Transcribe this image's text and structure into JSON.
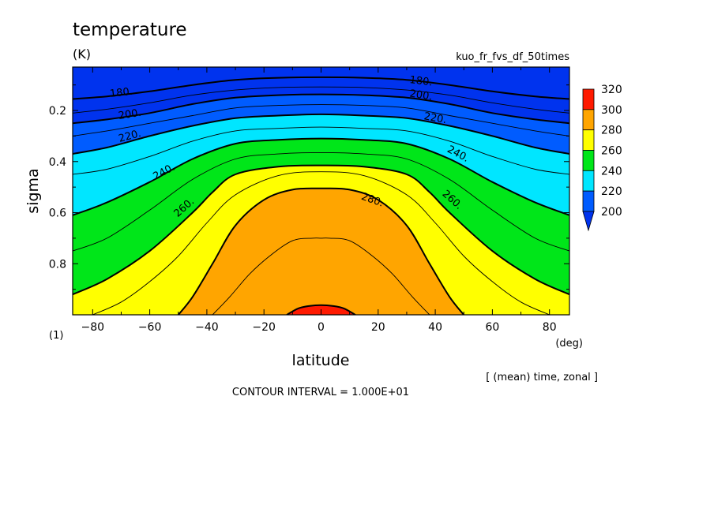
{
  "chart_data": {
    "type": "heatmap",
    "title": "temperature",
    "units": "(K)",
    "subtitle_right": "kuo_fr_fvs_df_50times",
    "xlabel": "latitude",
    "xunits": "(deg)",
    "ylabel": "sigma",
    "yunits": "(1)",
    "xlim": [
      -87,
      87
    ],
    "ylim": [
      1.0,
      0.03
    ],
    "xticks": [
      -80,
      -60,
      -40,
      -20,
      0,
      20,
      40,
      60,
      80
    ],
    "xtick_labels": [
      "−80",
      "−60",
      "−40",
      "−20",
      "0",
      "20",
      "40",
      "60",
      "80"
    ],
    "yticks": [
      0.2,
      0.4,
      0.6,
      0.8
    ],
    "ytick_labels": [
      "0.2",
      "0.4",
      "0.6",
      "0.8"
    ],
    "levels": [
      200,
      220,
      240,
      260,
      280,
      300,
      320
    ],
    "colorbar_labels": [
      "320",
      "300",
      "280",
      "260",
      "240",
      "220",
      "200"
    ],
    "colors": {
      "below_200": "#0033ee",
      "200_220": "#005cff",
      "220_240": "#00e6ff",
      "240_260": "#00e619",
      "260_280": "#ffff00",
      "280_300": "#ffa500",
      "300_320": "#ff1a00"
    },
    "contours": [
      {
        "value": 180,
        "lats": [
          -87,
          -75,
          -60,
          -45,
          -30,
          -15,
          0,
          15,
          30,
          45,
          60,
          75,
          87
        ],
        "sigma": [
          0.155,
          0.145,
          0.125,
          0.1,
          0.08,
          0.072,
          0.07,
          0.072,
          0.08,
          0.1,
          0.125,
          0.145,
          0.155
        ]
      },
      {
        "value": 190,
        "lats": [
          -87,
          -75,
          -60,
          -45,
          -30,
          -15,
          0,
          15,
          30,
          45,
          60,
          75,
          87
        ],
        "sigma": [
          0.21,
          0.195,
          0.17,
          0.14,
          0.12,
          0.11,
          0.108,
          0.11,
          0.12,
          0.14,
          0.17,
          0.195,
          0.21
        ]
      },
      {
        "value": 200,
        "lats": [
          -87,
          -75,
          -60,
          -45,
          -30,
          -15,
          0,
          15,
          30,
          45,
          60,
          75,
          87
        ],
        "sigma": [
          0.25,
          0.235,
          0.21,
          0.175,
          0.15,
          0.14,
          0.137,
          0.14,
          0.15,
          0.175,
          0.21,
          0.235,
          0.25
        ]
      },
      {
        "value": 210,
        "lats": [
          -87,
          -75,
          -60,
          -45,
          -30,
          -15,
          0,
          15,
          30,
          45,
          60,
          75,
          87
        ],
        "sigma": [
          0.3,
          0.28,
          0.25,
          0.22,
          0.19,
          0.18,
          0.177,
          0.18,
          0.19,
          0.22,
          0.25,
          0.28,
          0.3
        ]
      },
      {
        "value": 220,
        "lats": [
          -87,
          -75,
          -60,
          -45,
          -30,
          -15,
          0,
          15,
          30,
          45,
          60,
          75,
          87
        ],
        "sigma": [
          0.37,
          0.345,
          0.3,
          0.26,
          0.23,
          0.22,
          0.215,
          0.22,
          0.23,
          0.26,
          0.3,
          0.345,
          0.37
        ]
      },
      {
        "value": 230,
        "lats": [
          -87,
          -75,
          -60,
          -45,
          -30,
          -15,
          0,
          15,
          30,
          45,
          60,
          75,
          87
        ],
        "sigma": [
          0.45,
          0.43,
          0.38,
          0.32,
          0.28,
          0.27,
          0.265,
          0.27,
          0.28,
          0.32,
          0.38,
          0.43,
          0.45
        ]
      },
      {
        "value": 240,
        "lats": [
          -87,
          -75,
          -60,
          -45,
          -30,
          -15,
          0,
          15,
          30,
          45,
          60,
          75,
          87
        ],
        "sigma": [
          0.61,
          0.56,
          0.48,
          0.39,
          0.33,
          0.315,
          0.31,
          0.315,
          0.33,
          0.39,
          0.48,
          0.56,
          0.61
        ]
      },
      {
        "value": 250,
        "lats": [
          -87,
          -75,
          -60,
          -45,
          -30,
          -15,
          0,
          15,
          30,
          45,
          60,
          75,
          87
        ],
        "sigma": [
          0.75,
          0.7,
          0.59,
          0.47,
          0.39,
          0.37,
          0.365,
          0.37,
          0.39,
          0.47,
          0.59,
          0.7,
          0.75
        ]
      },
      {
        "value": 260,
        "lats": [
          -87,
          -75,
          -60,
          -45,
          -38,
          -30,
          -15,
          0,
          15,
          30,
          38,
          45,
          60,
          75,
          87
        ],
        "sigma": [
          0.92,
          0.86,
          0.75,
          0.6,
          0.52,
          0.45,
          0.42,
          0.415,
          0.42,
          0.45,
          0.52,
          0.6,
          0.75,
          0.86,
          0.92
        ]
      },
      {
        "value": 270,
        "lats": [
          -80,
          -70,
          -60,
          -50,
          -40,
          -30,
          -15,
          0,
          15,
          30,
          40,
          50,
          60,
          70,
          80
        ],
        "sigma": [
          1.0,
          0.95,
          0.87,
          0.77,
          0.64,
          0.53,
          0.455,
          0.44,
          0.455,
          0.53,
          0.64,
          0.77,
          0.87,
          0.95,
          1.0
        ]
      },
      {
        "value": 280,
        "lats": [
          -50,
          -45,
          -38,
          -30,
          -20,
          -10,
          0,
          10,
          20,
          30,
          38,
          45,
          50
        ],
        "sigma": [
          1.0,
          0.93,
          0.8,
          0.65,
          0.55,
          0.51,
          0.505,
          0.51,
          0.55,
          0.65,
          0.8,
          0.93,
          1.0
        ]
      },
      {
        "value": 290,
        "lats": [
          -38,
          -32,
          -25,
          -18,
          -10,
          -3,
          0,
          3,
          10,
          18,
          25,
          32,
          38
        ],
        "sigma": [
          1.0,
          0.93,
          0.84,
          0.77,
          0.71,
          0.7,
          0.7,
          0.7,
          0.71,
          0.77,
          0.84,
          0.93,
          1.0
        ]
      },
      {
        "value": 300,
        "lats": [
          -12,
          -8,
          -4,
          0,
          4,
          8,
          12
        ],
        "sigma": [
          1.0,
          0.975,
          0.965,
          0.962,
          0.965,
          0.975,
          1.0
        ]
      }
    ],
    "contour_labels": [
      {
        "text": "180.",
        "lat": -70,
        "sigma": 0.13
      },
      {
        "text": "180.",
        "lat": 35,
        "sigma": 0.085
      },
      {
        "text": "200.",
        "lat": 35,
        "sigma": 0.14
      },
      {
        "text": "200.",
        "lat": -67,
        "sigma": 0.215
      },
      {
        "text": "220.",
        "lat": -67,
        "sigma": 0.3
      },
      {
        "text": "220.",
        "lat": 40,
        "sigma": 0.23
      },
      {
        "text": "240.",
        "lat": -55,
        "sigma": 0.44
      },
      {
        "text": "240.",
        "lat": 48,
        "sigma": 0.37
      },
      {
        "text": "260.",
        "lat": -48,
        "sigma": 0.58
      },
      {
        "text": "260.",
        "lat": 46,
        "sigma": 0.55
      },
      {
        "text": "280.",
        "lat": 18,
        "sigma": 0.55
      }
    ],
    "annotation_right": "[ (mean) time, zonal ]",
    "footer": "CONTOUR INTERVAL = 1.000E+01"
  }
}
